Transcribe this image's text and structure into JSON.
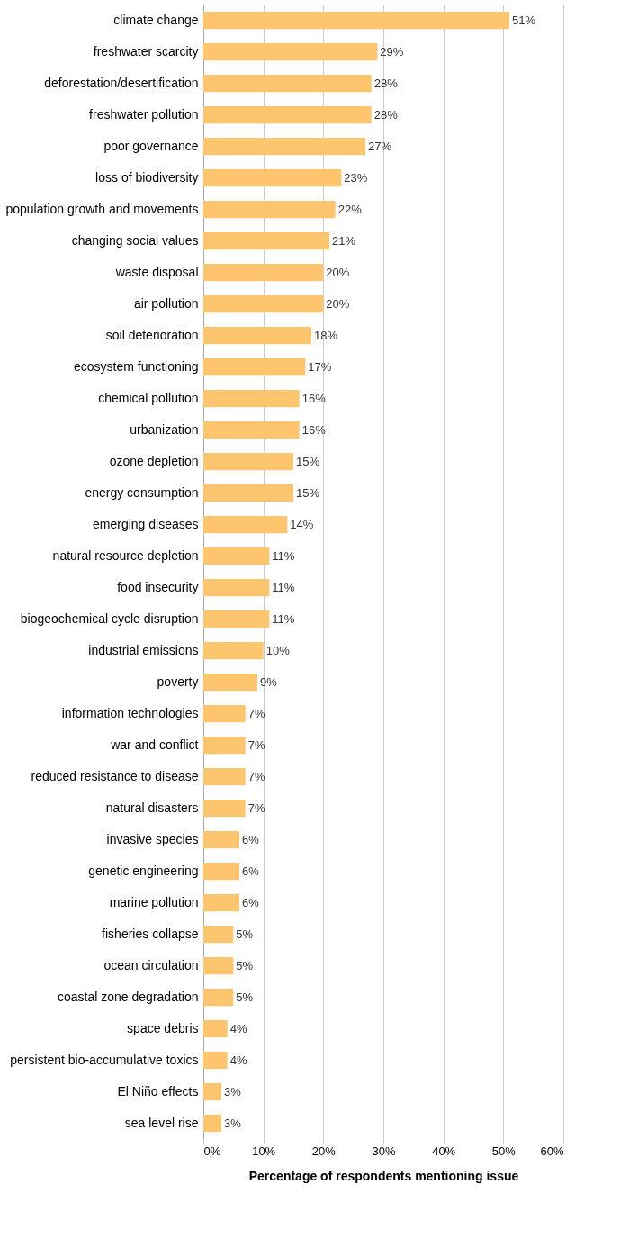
{
  "chart_data": {
    "type": "bar",
    "orientation": "horizontal",
    "xlabel": "Percentage of respondents mentioning issue",
    "categories": [
      "climate change",
      "freshwater scarcity",
      "deforestation/desertification",
      "freshwater pollution",
      "poor governance",
      "loss of biodiversity",
      "population growth and movements",
      "changing social values",
      "waste disposal",
      "air pollution",
      "soil deterioration",
      "ecosystem functioning",
      "chemical pollution",
      "urbanization",
      "ozone depletion",
      "energy consumption",
      "emerging diseases",
      "natural resource depletion",
      "food insecurity",
      "biogeochemical cycle disruption",
      "industrial emissions",
      "poverty",
      "information technologies",
      "war and conflict",
      "reduced resistance to disease",
      "natural disasters",
      "invasive species",
      "genetic engineering",
      "marine pollution",
      "fisheries collapse",
      "ocean circulation",
      "coastal zone degradation",
      "space debris",
      "persistent bio-accumulative toxics",
      "El Niño effects",
      "sea level rise"
    ],
    "values": [
      51,
      29,
      28,
      28,
      27,
      23,
      22,
      21,
      20,
      20,
      18,
      17,
      16,
      16,
      15,
      15,
      14,
      11,
      11,
      11,
      10,
      9,
      7,
      7,
      7,
      7,
      6,
      6,
      6,
      5,
      5,
      5,
      4,
      4,
      3,
      3
    ],
    "value_labels": [
      "51%",
      "29%",
      "28%",
      "28%",
      "27%",
      "23%",
      "22%",
      "21%",
      "20%",
      "20%",
      "18%",
      "17%",
      "16%",
      "16%",
      "15%",
      "15%",
      "14%",
      "11%",
      "11%",
      "11%",
      "10%",
      "9%",
      "7%",
      "7%",
      "7%",
      "7%",
      "6%",
      "6%",
      "6%",
      "5%",
      "5%",
      "5%",
      "4%",
      "4%",
      "3%",
      "3%"
    ],
    "color": "#fdc66e",
    "xlim": [
      0,
      60
    ],
    "xticks": [
      {
        "value": 0,
        "label": "0%"
      },
      {
        "value": 10,
        "label": "10%"
      },
      {
        "value": 20,
        "label": "20%"
      },
      {
        "value": 30,
        "label": "30%"
      },
      {
        "value": 40,
        "label": "40%"
      },
      {
        "value": 50,
        "label": "50%"
      },
      {
        "value": 60,
        "label": "60%"
      }
    ],
    "grid": "x"
  }
}
